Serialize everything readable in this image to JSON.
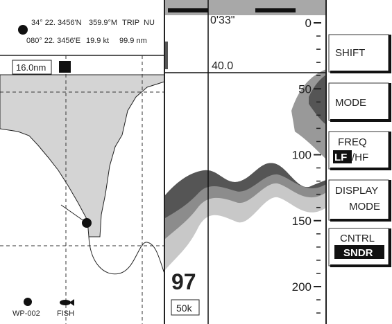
{
  "plotter": {
    "latitude": "34° 22. 3456'N",
    "course": "359.9°M",
    "trip_label": "TRIP",
    "trip_unit": "NU",
    "longitude": "080° 22. 3456'E",
    "speed": "19.9 kt",
    "distance": "99.9 nm",
    "range": "16.0nm",
    "waypoint": "WP-002",
    "fish": "FISH"
  },
  "sounder": {
    "time": "0'33\"",
    "vrm": "40.0",
    "depth": "97",
    "frequency": "50k",
    "scale_labels": [
      "0",
      "50",
      "100",
      "150",
      "200"
    ]
  },
  "soft_keys": {
    "shift": "SHIFT",
    "mode": "MODE",
    "freq": "FREQ",
    "lf": "LF",
    "hf": "/HF",
    "display": "DISPLAY",
    "display_mode": "MODE",
    "cntrl": "CNTRL",
    "sndr": "SNDR"
  }
}
